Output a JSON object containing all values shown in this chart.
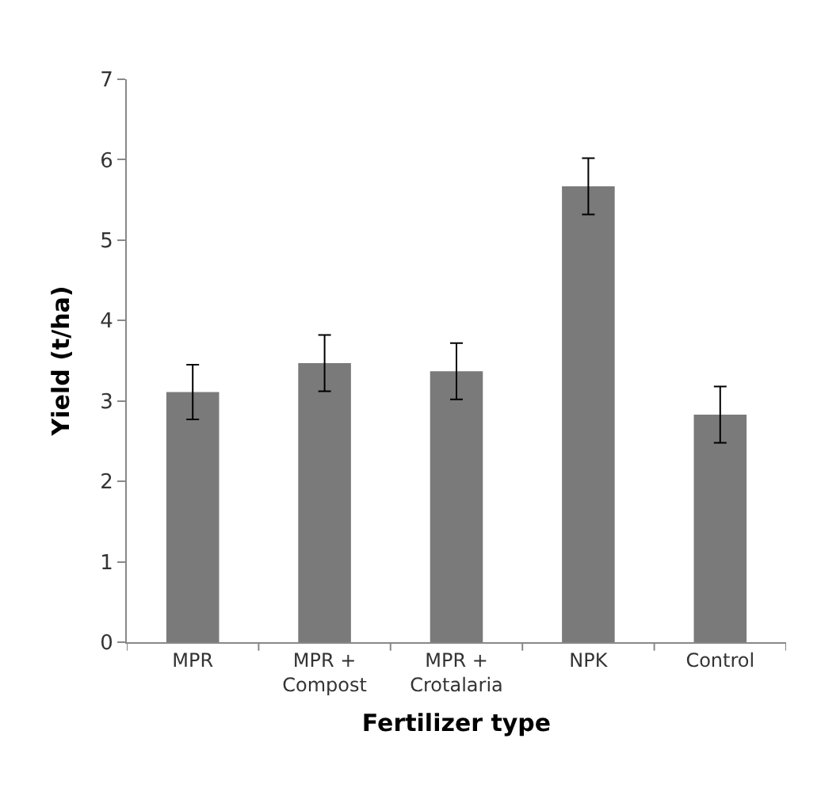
{
  "chart_data": {
    "type": "bar",
    "xlabel": "Fertilizer type",
    "ylabel": "Yield (t/ha)",
    "categories": [
      "MPR",
      "MPR +\nCompost",
      "MPR +\nCrotalaria",
      "NPK",
      "Control"
    ],
    "values": [
      3.11,
      3.47,
      3.37,
      5.67,
      2.83
    ],
    "errors": [
      0.34,
      0.35,
      0.35,
      0.35,
      0.35
    ],
    "color": "#7a7a7a",
    "ylim": [
      0,
      7
    ],
    "yticks": [
      0,
      1,
      2,
      3,
      4,
      5,
      6,
      7
    ]
  }
}
